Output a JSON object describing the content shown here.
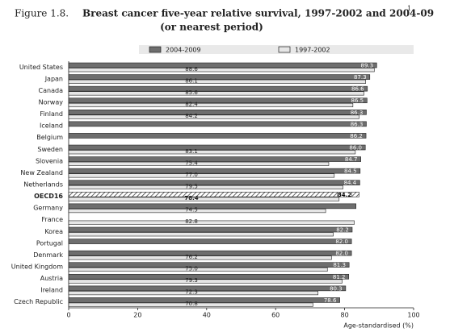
{
  "chart_data": {
    "type": "bar",
    "orientation": "horizontal",
    "figure_label": "Figure 1.8.",
    "title": "Breast cancer five-year relative survival, 1997-2002 and 2004-09",
    "title_note": "1",
    "subtitle": "(or nearest period)",
    "x_label": "Age-standardised (%)",
    "categories": [
      "United States",
      "Japan",
      "Canada",
      "Norway",
      "Finland",
      "Iceland",
      "Belgium",
      "Sweden",
      "Slovenia",
      "New Zealand",
      "Netherlands",
      "OECD16",
      "Germany",
      "France",
      "Korea",
      "Portugal",
      "Denmark",
      "United Kingdom",
      "Austria",
      "Ireland",
      "Czech Republic"
    ],
    "highlight": "OECD16",
    "series": [
      {
        "name": "2004-2009",
        "color": "#6e6e6e",
        "values": [
          89.3,
          87.3,
          86.6,
          86.5,
          86.3,
          86.3,
          86.2,
          86.0,
          84.7,
          84.5,
          84.4,
          84.2,
          83.3,
          null,
          82.2,
          82.0,
          82.0,
          81.3,
          81.2,
          80.3,
          78.6
        ],
        "value_labels": [
          "89.3",
          "87.3",
          "86.6",
          "86.5",
          "86.3",
          "86.3",
          "86.2",
          "86.0",
          "84.7",
          "84.5",
          "84.4",
          "84.2",
          null,
          null,
          "82.2",
          "82.0",
          "82.0",
          "81.3",
          "81.2",
          "80.3",
          "78.6"
        ]
      },
      {
        "name": "1997-2002",
        "color": "#e6e6e6",
        "values": [
          88.6,
          86.1,
          85.6,
          82.4,
          84.2,
          null,
          null,
          83.1,
          75.4,
          77.0,
          79.5,
          78.4,
          74.5,
          82.8,
          76.7,
          null,
          76.2,
          75.0,
          79.3,
          72.3,
          70.8
        ],
        "value_labels": [
          "88.6",
          "86.1",
          "85.6",
          "82.4",
          "84.2",
          null,
          null,
          "83.1",
          "75.4",
          "77.0",
          "79.5",
          "78.4",
          "74.5",
          "82.8",
          null,
          null,
          "76.2",
          "75.0",
          "79.3",
          "72.3",
          "70.8"
        ]
      }
    ],
    "xlim": [
      0,
      100
    ],
    "xticks": [
      0,
      20,
      40,
      60,
      80,
      100
    ]
  }
}
